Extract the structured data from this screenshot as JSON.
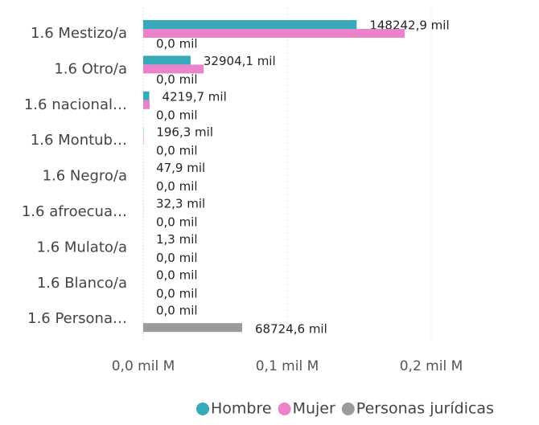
{
  "chart_data": {
    "type": "hbar",
    "categories": [
      "1.6 Mestizo/a",
      "1.6 Otro/a",
      "1.6 nacional…",
      "1.6 Montub…",
      "1.6 Negro/a",
      "1.6 afroecua…",
      "1.6 Mulato/a",
      "1.6 Blanco/a",
      "1.6 Persona…"
    ],
    "series": [
      {
        "name": "Hombre",
        "color": "#36aab8",
        "values": [
          0.1482429,
          0.0329041,
          0.0042197,
          0.0001963,
          4.79e-05,
          3.23e-05,
          1.3e-06,
          0,
          0
        ],
        "value_labels": [
          "148242,9 mil",
          "32904,1 mil",
          "4219,7 mil",
          "196,3 mil",
          "47,9 mil",
          "32,3 mil",
          "1,3 mil",
          "0,0 mil",
          "0,0 mil"
        ]
      },
      {
        "name": "Mujer",
        "color": "#ea82cc",
        "values": [
          0.1816,
          0.042,
          0.0045,
          0.0003,
          0.0001,
          0.0001,
          5e-05,
          0,
          0
        ]
      },
      {
        "name": "Personas jurídicas",
        "color": "#9b9b9b",
        "values": [
          0,
          0,
          0,
          0,
          0,
          0,
          0,
          0,
          0.0687246
        ],
        "value_labels": [
          "0,0 mil",
          "0,0 mil",
          "0,0 mil",
          "0,0 mil",
          "0,0 mil",
          "0,0 mil",
          "0,0 mil",
          "0,0 mil",
          "68724,6 mil"
        ]
      }
    ],
    "xlim": [
      0,
      0.25
    ],
    "xticks": [
      {
        "value": 0,
        "label": "0,0 mil M"
      },
      {
        "value": 0.1,
        "label": "0,1 mil M"
      },
      {
        "value": 0.2,
        "label": "0,2 mil M"
      }
    ],
    "grid": true,
    "legend": "bottom"
  }
}
